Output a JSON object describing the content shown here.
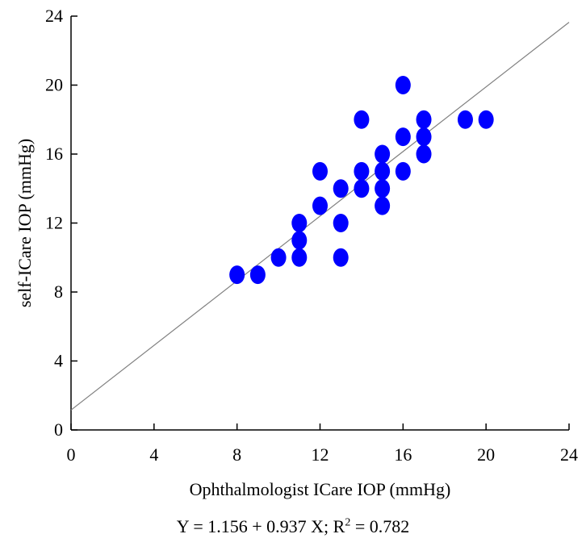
{
  "chart_data": {
    "type": "scatter",
    "title": "",
    "xlabel": "Ophthalmologist ICare IOP (mmHg)",
    "ylabel": "self-ICare IOP (mmHg)",
    "xlim": [
      0,
      24
    ],
    "ylim": [
      0,
      24
    ],
    "xticks": [
      0,
      4,
      8,
      12,
      16,
      20,
      24
    ],
    "yticks": [
      0,
      4,
      8,
      12,
      16,
      20,
      24
    ],
    "grid": false,
    "marker_color": "#0000ff",
    "line_color": "#808080",
    "points": [
      {
        "x": 8,
        "y": 9
      },
      {
        "x": 9,
        "y": 9
      },
      {
        "x": 10,
        "y": 10
      },
      {
        "x": 11,
        "y": 10
      },
      {
        "x": 11,
        "y": 11
      },
      {
        "x": 11,
        "y": 12
      },
      {
        "x": 12,
        "y": 13
      },
      {
        "x": 12,
        "y": 15
      },
      {
        "x": 13,
        "y": 10
      },
      {
        "x": 13,
        "y": 12
      },
      {
        "x": 13,
        "y": 14
      },
      {
        "x": 14,
        "y": 14
      },
      {
        "x": 14,
        "y": 15
      },
      {
        "x": 14,
        "y": 18
      },
      {
        "x": 15,
        "y": 13
      },
      {
        "x": 15,
        "y": 14
      },
      {
        "x": 15,
        "y": 15
      },
      {
        "x": 15,
        "y": 16
      },
      {
        "x": 16,
        "y": 15
      },
      {
        "x": 16,
        "y": 17
      },
      {
        "x": 16,
        "y": 20
      },
      {
        "x": 17,
        "y": 16
      },
      {
        "x": 17,
        "y": 17
      },
      {
        "x": 17,
        "y": 18
      },
      {
        "x": 19,
        "y": 18
      },
      {
        "x": 20,
        "y": 18
      }
    ],
    "regression": {
      "intercept": 1.156,
      "slope": 0.937,
      "r2": 0.782
    },
    "equation": {
      "prefix": "Y = 1.156 + 0.937 X; R",
      "superscript": "2",
      "suffix": " = 0.782"
    }
  }
}
